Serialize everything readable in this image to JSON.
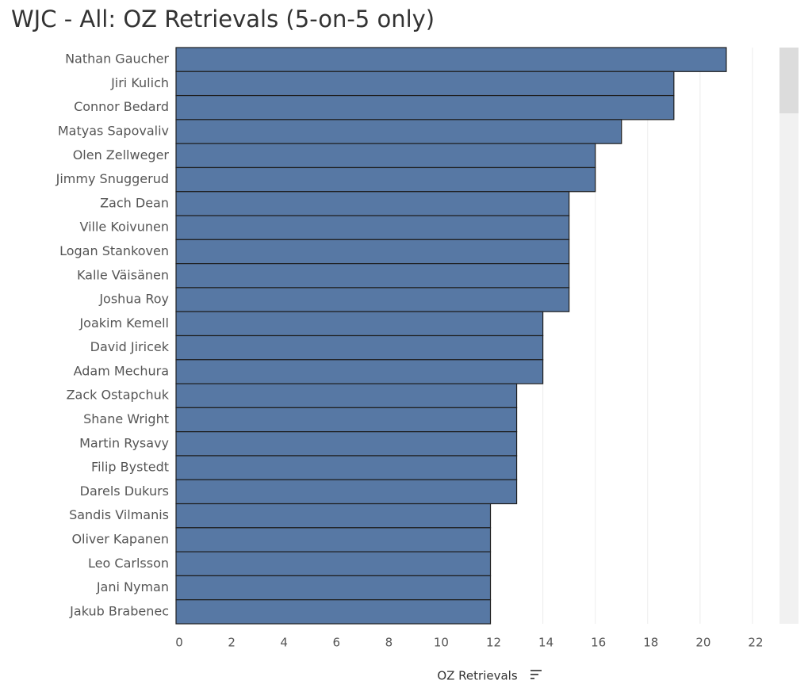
{
  "chart_data": {
    "type": "barh",
    "title": "WJC - All: OZ Retrievals (5-on-5 only)",
    "categories": [
      "Nathan Gaucher",
      "Jiri Kulich",
      "Connor Bedard",
      "Matyas Sapovaliv",
      "Olen Zellweger",
      "Jimmy Snuggerud",
      "Zach Dean",
      "Ville Koivunen",
      "Logan Stankoven",
      "Kalle Väisänen",
      "Joshua Roy",
      "Joakim Kemell",
      "David Jiricek",
      "Adam Mechura",
      "Zack Ostapchuk",
      "Shane Wright",
      "Martin Rysavy",
      "Filip Bystedt",
      "Darels Dukurs",
      "Sandis Vilmanis",
      "Oliver Kapanen",
      "Leo Carlsson",
      "Jani Nyman",
      "Jakub Brabenec"
    ],
    "values": [
      21,
      19,
      19,
      17,
      16,
      16,
      15,
      15,
      15,
      15,
      15,
      14,
      14,
      14,
      13,
      13,
      13,
      13,
      13,
      12,
      12,
      12,
      12,
      12
    ],
    "color": "#5778a4",
    "xlabel": "OZ Retrievals",
    "xlim": [
      0,
      23
    ],
    "xticks": [
      0,
      2,
      4,
      6,
      8,
      10,
      12,
      14,
      16,
      18,
      20,
      22
    ],
    "grid": true
  }
}
